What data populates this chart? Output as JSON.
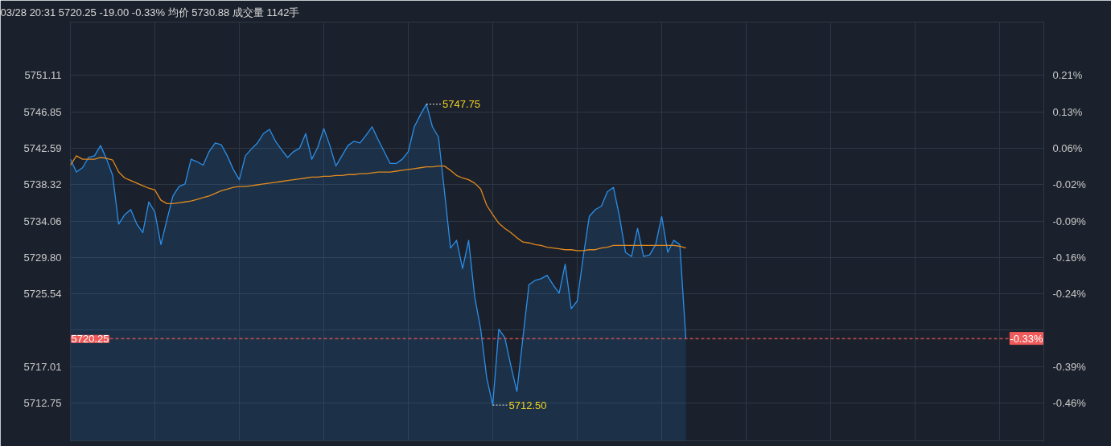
{
  "chart_data": {
    "type": "line",
    "title": "03/28 20:31 5720.25 -19.00 -0.33% 均价 5730.88 成交量 1142手",
    "categories": [
      null,
      null,
      null,
      null,
      null,
      null,
      null,
      null,
      null,
      null,
      null,
      null,
      null,
      null,
      null,
      null,
      null,
      null,
      null,
      null,
      null,
      null,
      null,
      null,
      null,
      null,
      null,
      null,
      null,
      null,
      null,
      null,
      null,
      null,
      null,
      null,
      null,
      null,
      null,
      null,
      null,
      null,
      null,
      null,
      null,
      null,
      null,
      null,
      null,
      null,
      null,
      null,
      null,
      null,
      null,
      null,
      null,
      null,
      null,
      null,
      null,
      null,
      null,
      null,
      null,
      null,
      null,
      null,
      null,
      null,
      null,
      null,
      null,
      null,
      null,
      null,
      null,
      null,
      null,
      null,
      null,
      null,
      null,
      null,
      null,
      null,
      null,
      null,
      null,
      null,
      null,
      null,
      null,
      null,
      null,
      null,
      null,
      null,
      null,
      null,
      null,
      null,
      null
    ],
    "series": [
      {
        "type": "area",
        "color": "#2b8ee8",
        "values": [
          5741.3,
          5739.8,
          5740.3,
          5741.5,
          5741.7,
          5742.9,
          5741.3,
          5739.4,
          5733.7,
          5734.8,
          5735.4,
          5733.7,
          5732.7,
          5736.3,
          5735.1,
          5731.3,
          5734.2,
          5737.0,
          5738.1,
          5738.4,
          5741.3,
          5741.0,
          5740.6,
          5742.2,
          5743.2,
          5743.0,
          5741.7,
          5740.1,
          5738.9,
          5741.7,
          5742.5,
          5743.2,
          5744.3,
          5744.8,
          5743.4,
          5742.4,
          5741.5,
          5742.2,
          5742.6,
          5744.3,
          5741.3,
          5742.7,
          5744.9,
          5742.9,
          5740.5,
          5741.7,
          5742.9,
          5743.4,
          5743.2,
          5744.1,
          5745.1,
          5743.6,
          5742.2,
          5740.8,
          5740.8,
          5741.3,
          5742.2,
          5745.1,
          5746.5,
          5747.75,
          5745.1,
          5743.9,
          5737.5,
          5730.9,
          5731.8,
          5728.5,
          5731.8,
          5725.2,
          5721.4,
          5715.7,
          5712.5,
          5721.4,
          5720.4,
          5717.1,
          5714.1,
          5720.4,
          5726.6,
          5727.1,
          5727.3,
          5727.7,
          5726.6,
          5725.6,
          5729.0,
          5723.8,
          5724.7,
          5729.9,
          5734.6,
          5735.4,
          5735.8,
          5737.5,
          5738.0,
          5734.6,
          5730.4,
          5729.9,
          5733.2,
          5729.9,
          5730.1,
          5731.3,
          5734.6,
          5730.4,
          5731.8,
          5731.3,
          5720.25
        ]
      },
      {
        "color": "#e0891e",
        "values": [
          5740.6,
          5741.7,
          5741.3,
          5741.3,
          5741.3,
          5741.5,
          5741.4,
          5741.2,
          5739.8,
          5739.1,
          5738.8,
          5738.5,
          5738.2,
          5737.9,
          5737.7,
          5736.5,
          5736.1,
          5736.1,
          5736.2,
          5736.3,
          5736.4,
          5736.6,
          5736.8,
          5737.0,
          5737.3,
          5737.6,
          5737.8,
          5738.0,
          5738.1,
          5738.1,
          5738.2,
          5738.3,
          5738.4,
          5738.5,
          5738.6,
          5738.7,
          5738.8,
          5738.9,
          5739.0,
          5739.1,
          5739.2,
          5739.2,
          5739.3,
          5739.3,
          5739.4,
          5739.4,
          5739.5,
          5739.5,
          5739.6,
          5739.6,
          5739.7,
          5739.8,
          5739.8,
          5739.8,
          5739.9,
          5740.0,
          5740.1,
          5740.2,
          5740.3,
          5740.4,
          5740.4,
          5740.5,
          5740.5,
          5740.0,
          5739.4,
          5739.1,
          5738.9,
          5738.5,
          5737.8,
          5735.9,
          5734.8,
          5733.8,
          5733.2,
          5732.7,
          5732.1,
          5731.6,
          5731.5,
          5731.3,
          5731.2,
          5731.0,
          5730.9,
          5730.8,
          5730.7,
          5730.7,
          5730.6,
          5730.6,
          5730.7,
          5730.7,
          5730.9,
          5731.0,
          5731.2,
          5731.2,
          5731.2,
          5731.2,
          5731.2,
          5731.2,
          5731.2,
          5731.2,
          5731.2,
          5731.2,
          5731.2,
          5731.1,
          5730.9
        ]
      }
    ],
    "ylim": [
      5708.32,
      5757.36
    ],
    "yticks": [
      5712.75,
      5717.01,
      {
        "value": 5721.27,
        "label": null
      },
      5725.54,
      {
        "value": 5729.8,
        "label": "5729.80"
      },
      5734.06,
      5738.32,
      5742.59,
      5746.85,
      5751.11
    ],
    "y2lim": [
      -0.5389,
      0.3155
    ],
    "y2ticks": [
      {
        "value": -0.4617,
        "label": "-0.46%"
      },
      {
        "value": -0.3875,
        "label": "-0.39%"
      },
      {
        "value": -0.3133,
        "label": null
      },
      {
        "value": -0.2389,
        "label": "-0.24%"
      },
      {
        "value": -0.1647,
        "label": "-0.16%"
      },
      {
        "value": -0.0904,
        "label": "-0.09%"
      },
      {
        "value": -0.0162,
        "label": "-0.02%"
      },
      {
        "value": 0.0582,
        "label": "0.06%"
      },
      {
        "value": 0.1324,
        "label": "0.13%"
      },
      {
        "value": 0.2067,
        "label": "0.21%"
      }
    ],
    "ref_lines": [
      {
        "axis": "y",
        "value": 5720.25,
        "label": "5720.25",
        "color": "#f05a5a",
        "line_style": "dashed"
      },
      {
        "axis": "y2",
        "value": -0.33,
        "label": "-0.33%",
        "color": "#f05a5a",
        "line_style": "dashed"
      }
    ],
    "annotations": [
      "5747.75",
      "5712.50"
    ],
    "grid": true,
    "tick_labels": "y"
  }
}
